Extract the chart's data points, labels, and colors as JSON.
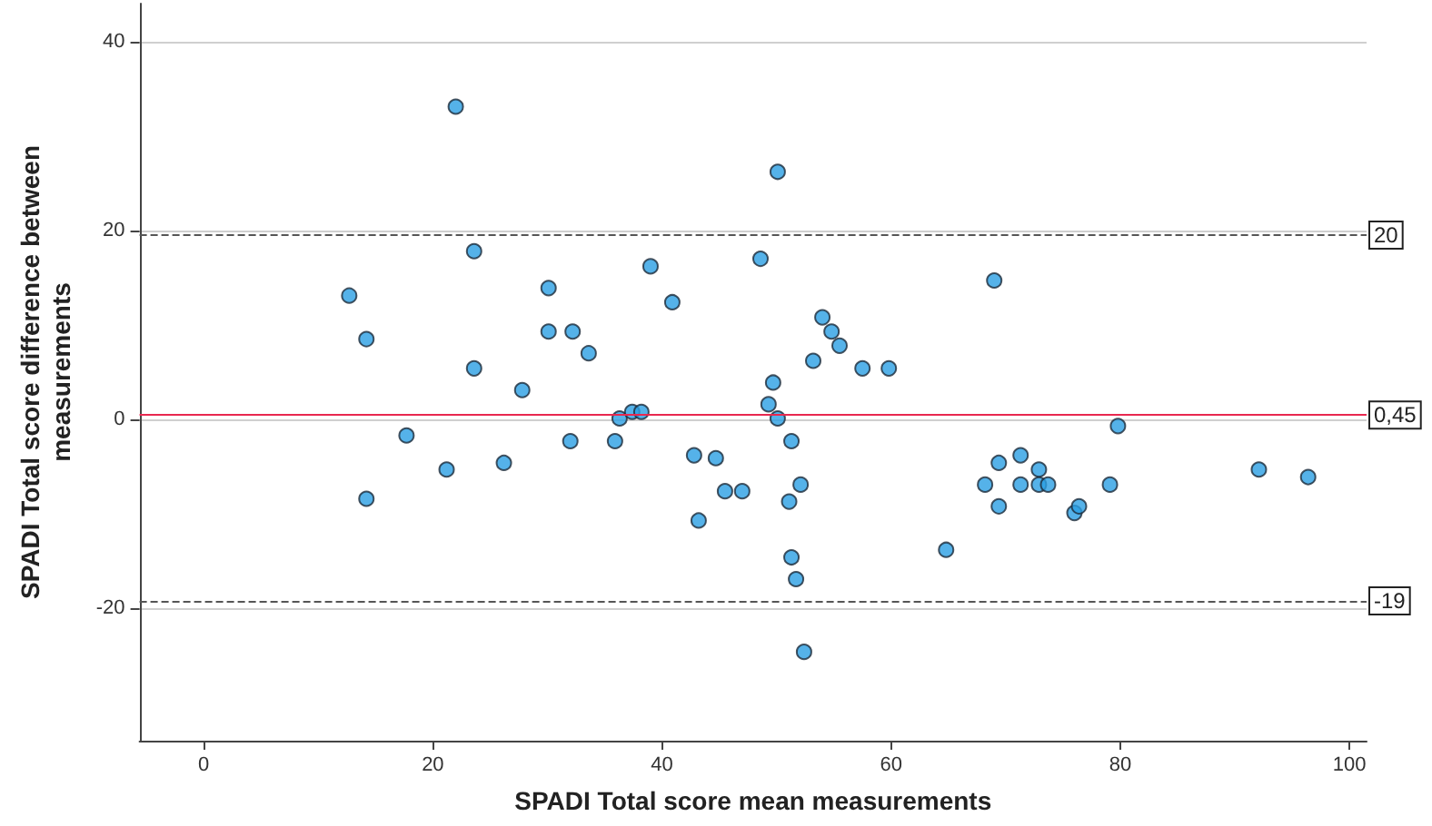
{
  "chart_data": {
    "type": "scatter",
    "xlabel": "SPADI Total score mean measurements",
    "ylabel": "SPADI Total score difference between measurements",
    "xlim": [
      -5.6,
      101.5
    ],
    "ylim": [
      -34,
      44
    ],
    "xticks": [
      0,
      20,
      40,
      60,
      80,
      100
    ],
    "yticks": [
      -20,
      0,
      20,
      40
    ],
    "grid": "y",
    "marker": "circle",
    "series": [
      {
        "color": "#2b9fe3",
        "x": [
          22.0,
          23.6,
          12.7,
          30.1,
          14.2,
          30.1,
          32.2,
          23.6,
          27.8,
          17.7,
          21.2,
          26.2,
          14.2,
          32.0,
          33.6,
          35.9,
          36.3,
          37.4,
          38.2,
          39.0,
          40.9,
          42.8,
          43.2,
          44.7,
          45.5,
          47.0,
          48.6,
          50.1,
          49.7,
          49.3,
          50.1,
          51.3,
          52.1,
          51.1,
          51.3,
          51.7,
          52.4,
          53.2,
          54.0,
          54.8,
          55.5,
          57.5,
          59.8,
          64.8,
          68.2,
          69.0,
          69.4,
          69.4,
          71.3,
          71.3,
          72.9,
          72.9,
          73.7,
          76.0,
          76.4,
          79.1,
          79.8,
          92.1,
          96.4
        ],
        "values": [
          33.1,
          17.8,
          13.1,
          13.9,
          8.5,
          9.3,
          9.3,
          5.4,
          3.1,
          -1.7,
          -5.3,
          -4.6,
          -8.4,
          -2.3,
          7.0,
          -2.3,
          0.1,
          0.8,
          0.8,
          16.2,
          12.4,
          -3.8,
          -10.7,
          -4.1,
          -7.6,
          -7.6,
          17.0,
          26.2,
          3.9,
          1.6,
          0.1,
          -2.3,
          -6.9,
          -8.7,
          -14.6,
          -16.9,
          -24.6,
          6.2,
          10.8,
          9.3,
          7.8,
          5.4,
          5.4,
          -13.8,
          -6.9,
          14.7,
          -4.6,
          -9.2,
          -3.8,
          -6.9,
          -5.3,
          -6.9,
          -6.9,
          -9.9,
          -9.2,
          -6.9,
          -0.7,
          -5.3,
          -6.1
        ]
      }
    ],
    "ref_lines": [
      {
        "axis": "y",
        "value": 19.5,
        "label": "20",
        "color": "#555555",
        "line_style": "dashed"
      },
      {
        "axis": "y",
        "value": 0.45,
        "label": "0,45",
        "color": "#e8284f",
        "line_style": "solid"
      },
      {
        "axis": "y",
        "value": -19.2,
        "label": "-19",
        "color": "#555555",
        "line_style": "dashed"
      }
    ]
  }
}
